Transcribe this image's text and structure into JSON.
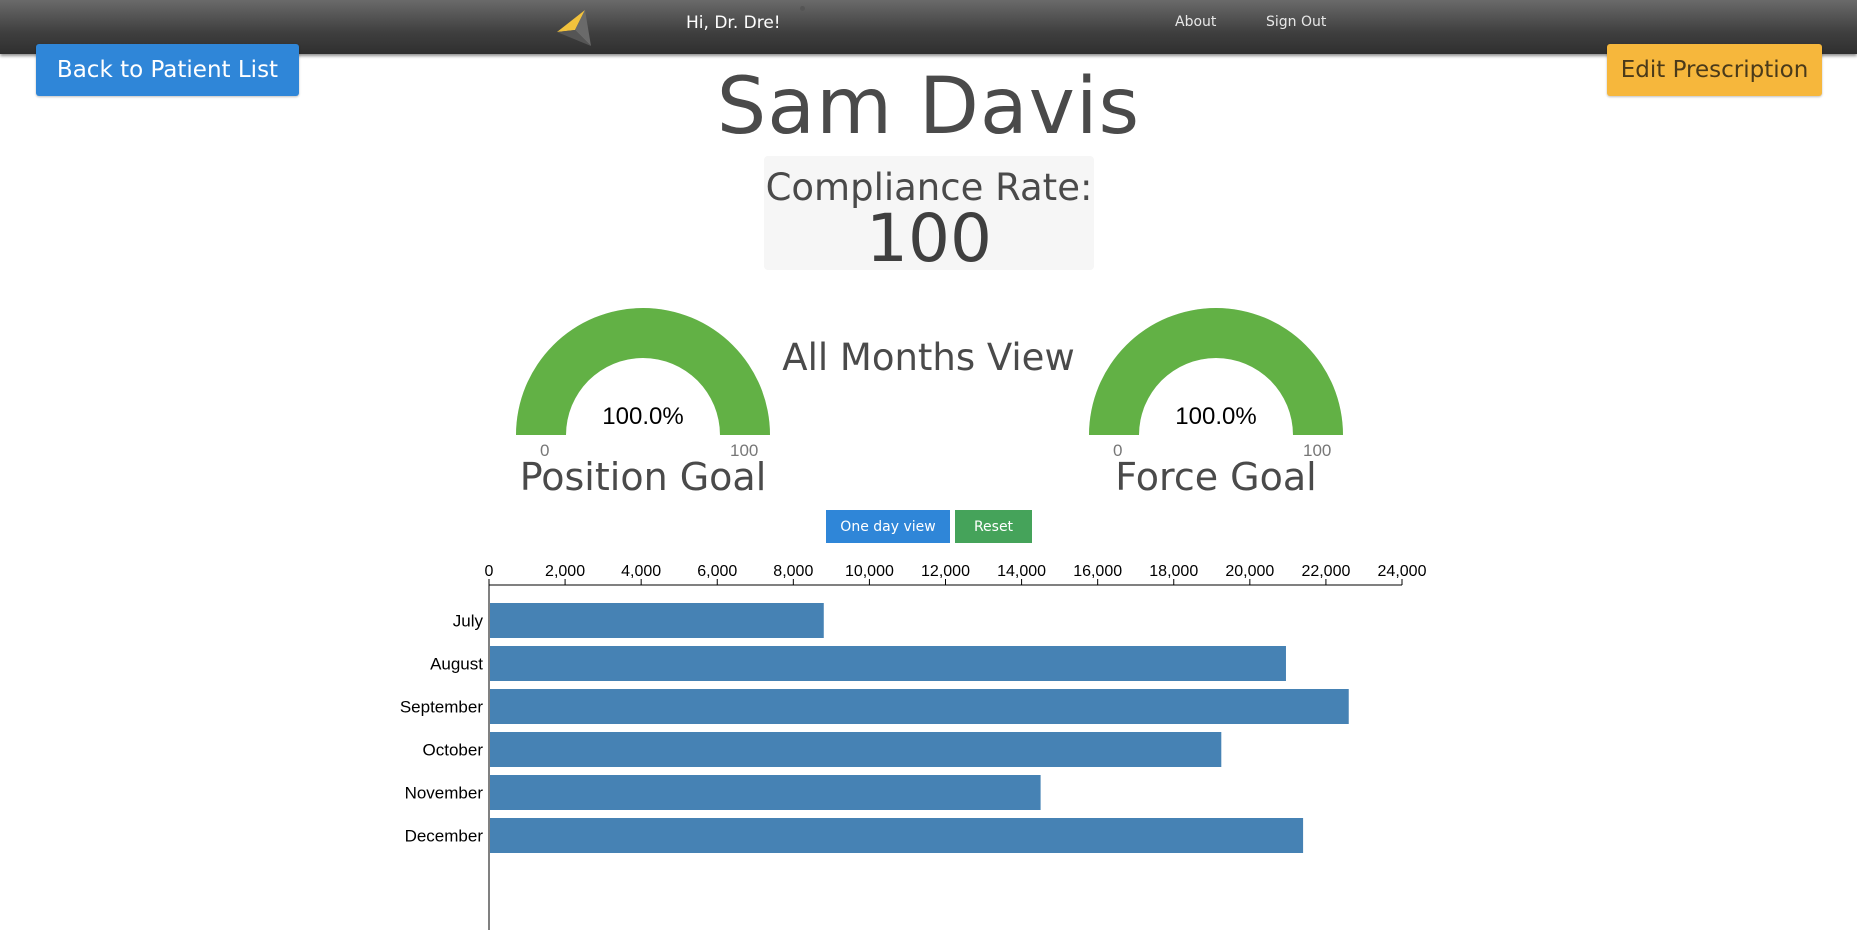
{
  "header": {
    "greeting": "Hi, Dr. Dre!",
    "nav": [
      {
        "label": "About"
      },
      {
        "label": "Sign Out"
      }
    ],
    "logo_icon": "arrow-logo-icon"
  },
  "actions": {
    "back_label": "Back to Patient List",
    "edit_label": "Edit Prescription"
  },
  "patient": {
    "name": "Sam Davis"
  },
  "compliance": {
    "label": "Compliance Rate:",
    "value": "100"
  },
  "view_title": "All Months View",
  "gauges": [
    {
      "label": "Position Goal",
      "percent_text": "100.0%",
      "value": 100,
      "min": "0",
      "max": "100"
    },
    {
      "label": "Force Goal",
      "percent_text": "100.0%",
      "value": 100,
      "min": "0",
      "max": "100"
    }
  ],
  "controls": {
    "one_day_label": "One day view",
    "reset_label": "Reset"
  },
  "colors": {
    "primary": "#2f86d8",
    "warning": "#f6b73c",
    "success": "#45a35a",
    "gauge_fill": "#62b145",
    "bar": "#4682b4"
  },
  "chart_data": {
    "type": "bar",
    "orientation": "horizontal",
    "categories": [
      "July",
      "August",
      "September",
      "October",
      "November",
      "December"
    ],
    "values": [
      8800,
      20950,
      22600,
      19250,
      14500,
      21400
    ],
    "xlim": [
      0,
      24000
    ],
    "xticks": [
      "0",
      "2,000",
      "4,000",
      "6,000",
      "8,000",
      "10,000",
      "12,000",
      "14,000",
      "16,000",
      "18,000",
      "20,000",
      "22,000",
      "24,000"
    ],
    "axis_position": "top",
    "grid": false,
    "title": "",
    "xlabel": "",
    "ylabel": ""
  }
}
